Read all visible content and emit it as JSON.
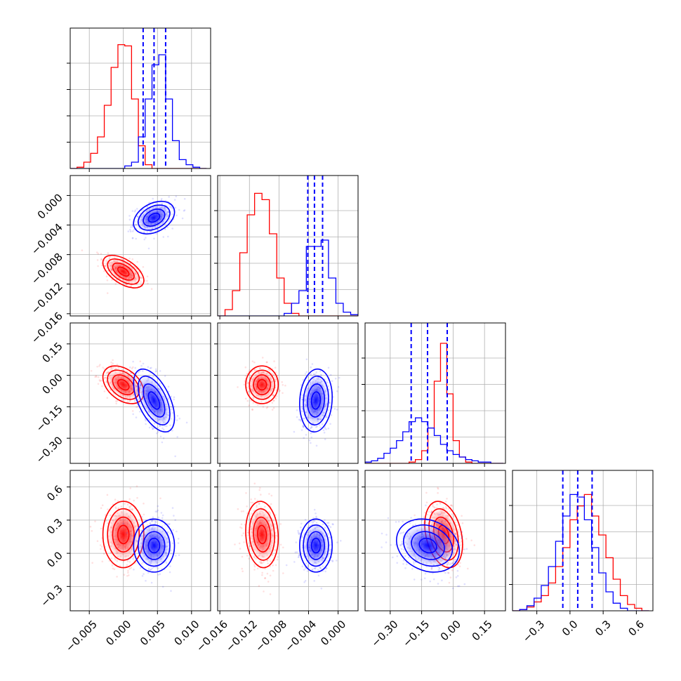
{
  "colors": {
    "red": "#ff0000",
    "blue": "#0000ff",
    "grid": "#b0b0b0"
  },
  "chart_data": {
    "type": "corner",
    "title": "",
    "parameters": [
      {
        "range": [
          -0.0078,
          0.0128
        ],
        "ticks": [
          -0.005,
          0.0,
          0.005,
          0.01
        ],
        "tick_labels": [
          "−0.005",
          "0.000",
          "0.005",
          "0.010"
        ]
      },
      {
        "range": [
          -0.0163,
          0.0027
        ],
        "ticks": [
          -0.016,
          -0.012,
          -0.008,
          -0.004,
          0.0
        ],
        "tick_labels": [
          "−0.016",
          "−0.012",
          "−0.008",
          "−0.004",
          "0.000"
        ]
      },
      {
        "range": [
          -0.42,
          0.25
        ],
        "ticks": [
          -0.3,
          -0.15,
          0.0,
          0.15
        ],
        "tick_labels": [
          "−0.30",
          "−0.15",
          "0.00",
          "0.15"
        ]
      },
      {
        "range": [
          -0.52,
          0.75
        ],
        "ticks": [
          -0.3,
          0.0,
          0.3,
          0.6
        ],
        "tick_labels": [
          "−0.3",
          "0.0",
          "0.3",
          "0.6"
        ]
      }
    ],
    "series": [
      {
        "name": "",
        "color": "red",
        "mean": [
          0.0,
          -0.0103,
          -0.045,
          0.17
        ],
        "std": [
          0.0015,
          0.0011,
          0.045,
          0.15
        ]
      },
      {
        "name": "",
        "color": "blue",
        "mean": [
          0.0045,
          -0.003,
          -0.12,
          0.07
        ],
        "std": [
          0.0015,
          0.0011,
          0.075,
          0.12
        ]
      }
    ],
    "pairs": [
      {
        "i": 0,
        "j": 1,
        "corr": {
          "red": -0.55,
          "blue": 0.35
        }
      },
      {
        "i": 0,
        "j": 2,
        "corr": {
          "red": -0.4,
          "blue": -0.55
        }
      },
      {
        "i": 1,
        "j": 2,
        "corr": {
          "red": 0.0,
          "blue": 0.1
        }
      },
      {
        "i": 0,
        "j": 3,
        "corr": {
          "red": 0.0,
          "blue": 0.0
        }
      },
      {
        "i": 1,
        "j": 3,
        "corr": {
          "red": -0.1,
          "blue": 0.0
        }
      },
      {
        "i": 2,
        "j": 3,
        "corr": {
          "red": -0.3,
          "blue": -0.2
        }
      }
    ],
    "histograms": [
      {
        "param": 0,
        "bin_edges": [
          -0.0078,
          -0.0068,
          -0.0058,
          -0.0048,
          -0.0038,
          -0.0028,
          -0.0018,
          -0.0008,
          0.0002,
          0.0012,
          0.0022,
          0.0032,
          0.0042,
          0.0052,
          0.0062,
          0.0072,
          0.0082,
          0.0092,
          0.0102,
          0.0112,
          0.0122
        ],
        "red": [
          0.0,
          0.01,
          0.05,
          0.12,
          0.25,
          0.5,
          0.8,
          0.98,
          0.97,
          0.55,
          0.18,
          0.03,
          0.0,
          0,
          0,
          0,
          0,
          0,
          0,
          0
        ],
        "blue": [
          0,
          0,
          0,
          0,
          0,
          0,
          0,
          0,
          0.02,
          0.05,
          0.25,
          0.55,
          0.82,
          0.9,
          0.55,
          0.22,
          0.07,
          0.03,
          0.01,
          0.0
        ],
        "quantiles": [
          0.0029,
          0.0045,
          0.0062
        ]
      },
      {
        "param": 1,
        "bin_edges": [
          -0.0163,
          -0.0153,
          -0.0143,
          -0.0133,
          -0.0123,
          -0.0113,
          -0.0103,
          -0.0093,
          -0.0083,
          -0.0073,
          -0.0063,
          -0.0053,
          -0.0043,
          -0.0033,
          -0.0023,
          -0.0013,
          -0.0003,
          0.0007,
          0.0017,
          0.0027
        ],
        "red": [
          0.0,
          0.05,
          0.2,
          0.5,
          0.8,
          0.97,
          0.92,
          0.65,
          0.3,
          0.1,
          0.02,
          0.0,
          0,
          0,
          0,
          0,
          0,
          0,
          0
        ],
        "blue": [
          0,
          0,
          0,
          0,
          0,
          0,
          0,
          0,
          0,
          0.02,
          0.1,
          0.2,
          0.55,
          0.55,
          0.6,
          0.3,
          0.1,
          0.03,
          0.01
        ],
        "quantiles": [
          -0.0041,
          -0.0032,
          -0.0021
        ]
      },
      {
        "param": 2,
        "bin_edges": [
          -0.42,
          -0.39,
          -0.36,
          -0.33,
          -0.3,
          -0.27,
          -0.24,
          -0.21,
          -0.18,
          -0.15,
          -0.12,
          -0.09,
          -0.06,
          -0.03,
          0.0,
          0.03,
          0.06,
          0.09,
          0.12,
          0.15,
          0.18,
          0.21,
          0.24
        ],
        "red": [
          0,
          0,
          0,
          0,
          0,
          0,
          0,
          0.01,
          0.03,
          0.1,
          0.28,
          0.65,
          0.95,
          0.55,
          0.18,
          0.05,
          0.01,
          0,
          0,
          0,
          0,
          0
        ],
        "blue": [
          0.01,
          0.02,
          0.04,
          0.08,
          0.12,
          0.18,
          0.25,
          0.33,
          0.36,
          0.33,
          0.28,
          0.22,
          0.15,
          0.1,
          0.07,
          0.05,
          0.03,
          0.02,
          0.01,
          0.01,
          0.0,
          0.0
        ],
        "quantiles": [
          -0.2,
          -0.122,
          -0.028
        ]
      },
      {
        "param": 3,
        "bin_edges": [
          -0.52,
          -0.455,
          -0.39,
          -0.325,
          -0.26,
          -0.195,
          -0.13,
          -0.065,
          0.0,
          0.065,
          0.13,
          0.195,
          0.26,
          0.325,
          0.39,
          0.455,
          0.52,
          0.585,
          0.65,
          0.715
        ],
        "red": [
          0.0,
          0.01,
          0.03,
          0.07,
          0.12,
          0.22,
          0.35,
          0.5,
          0.72,
          0.83,
          0.92,
          0.75,
          0.6,
          0.42,
          0.25,
          0.12,
          0.05,
          0.02,
          0.0
        ],
        "blue": [
          0.0,
          0.01,
          0.04,
          0.1,
          0.2,
          0.35,
          0.55,
          0.75,
          0.92,
          0.9,
          0.72,
          0.5,
          0.3,
          0.15,
          0.06,
          0.02,
          0.0,
          0.0,
          0.0
        ],
        "quantiles": [
          -0.065,
          0.07,
          0.2
        ]
      }
    ],
    "grid": true,
    "legend": "none"
  }
}
